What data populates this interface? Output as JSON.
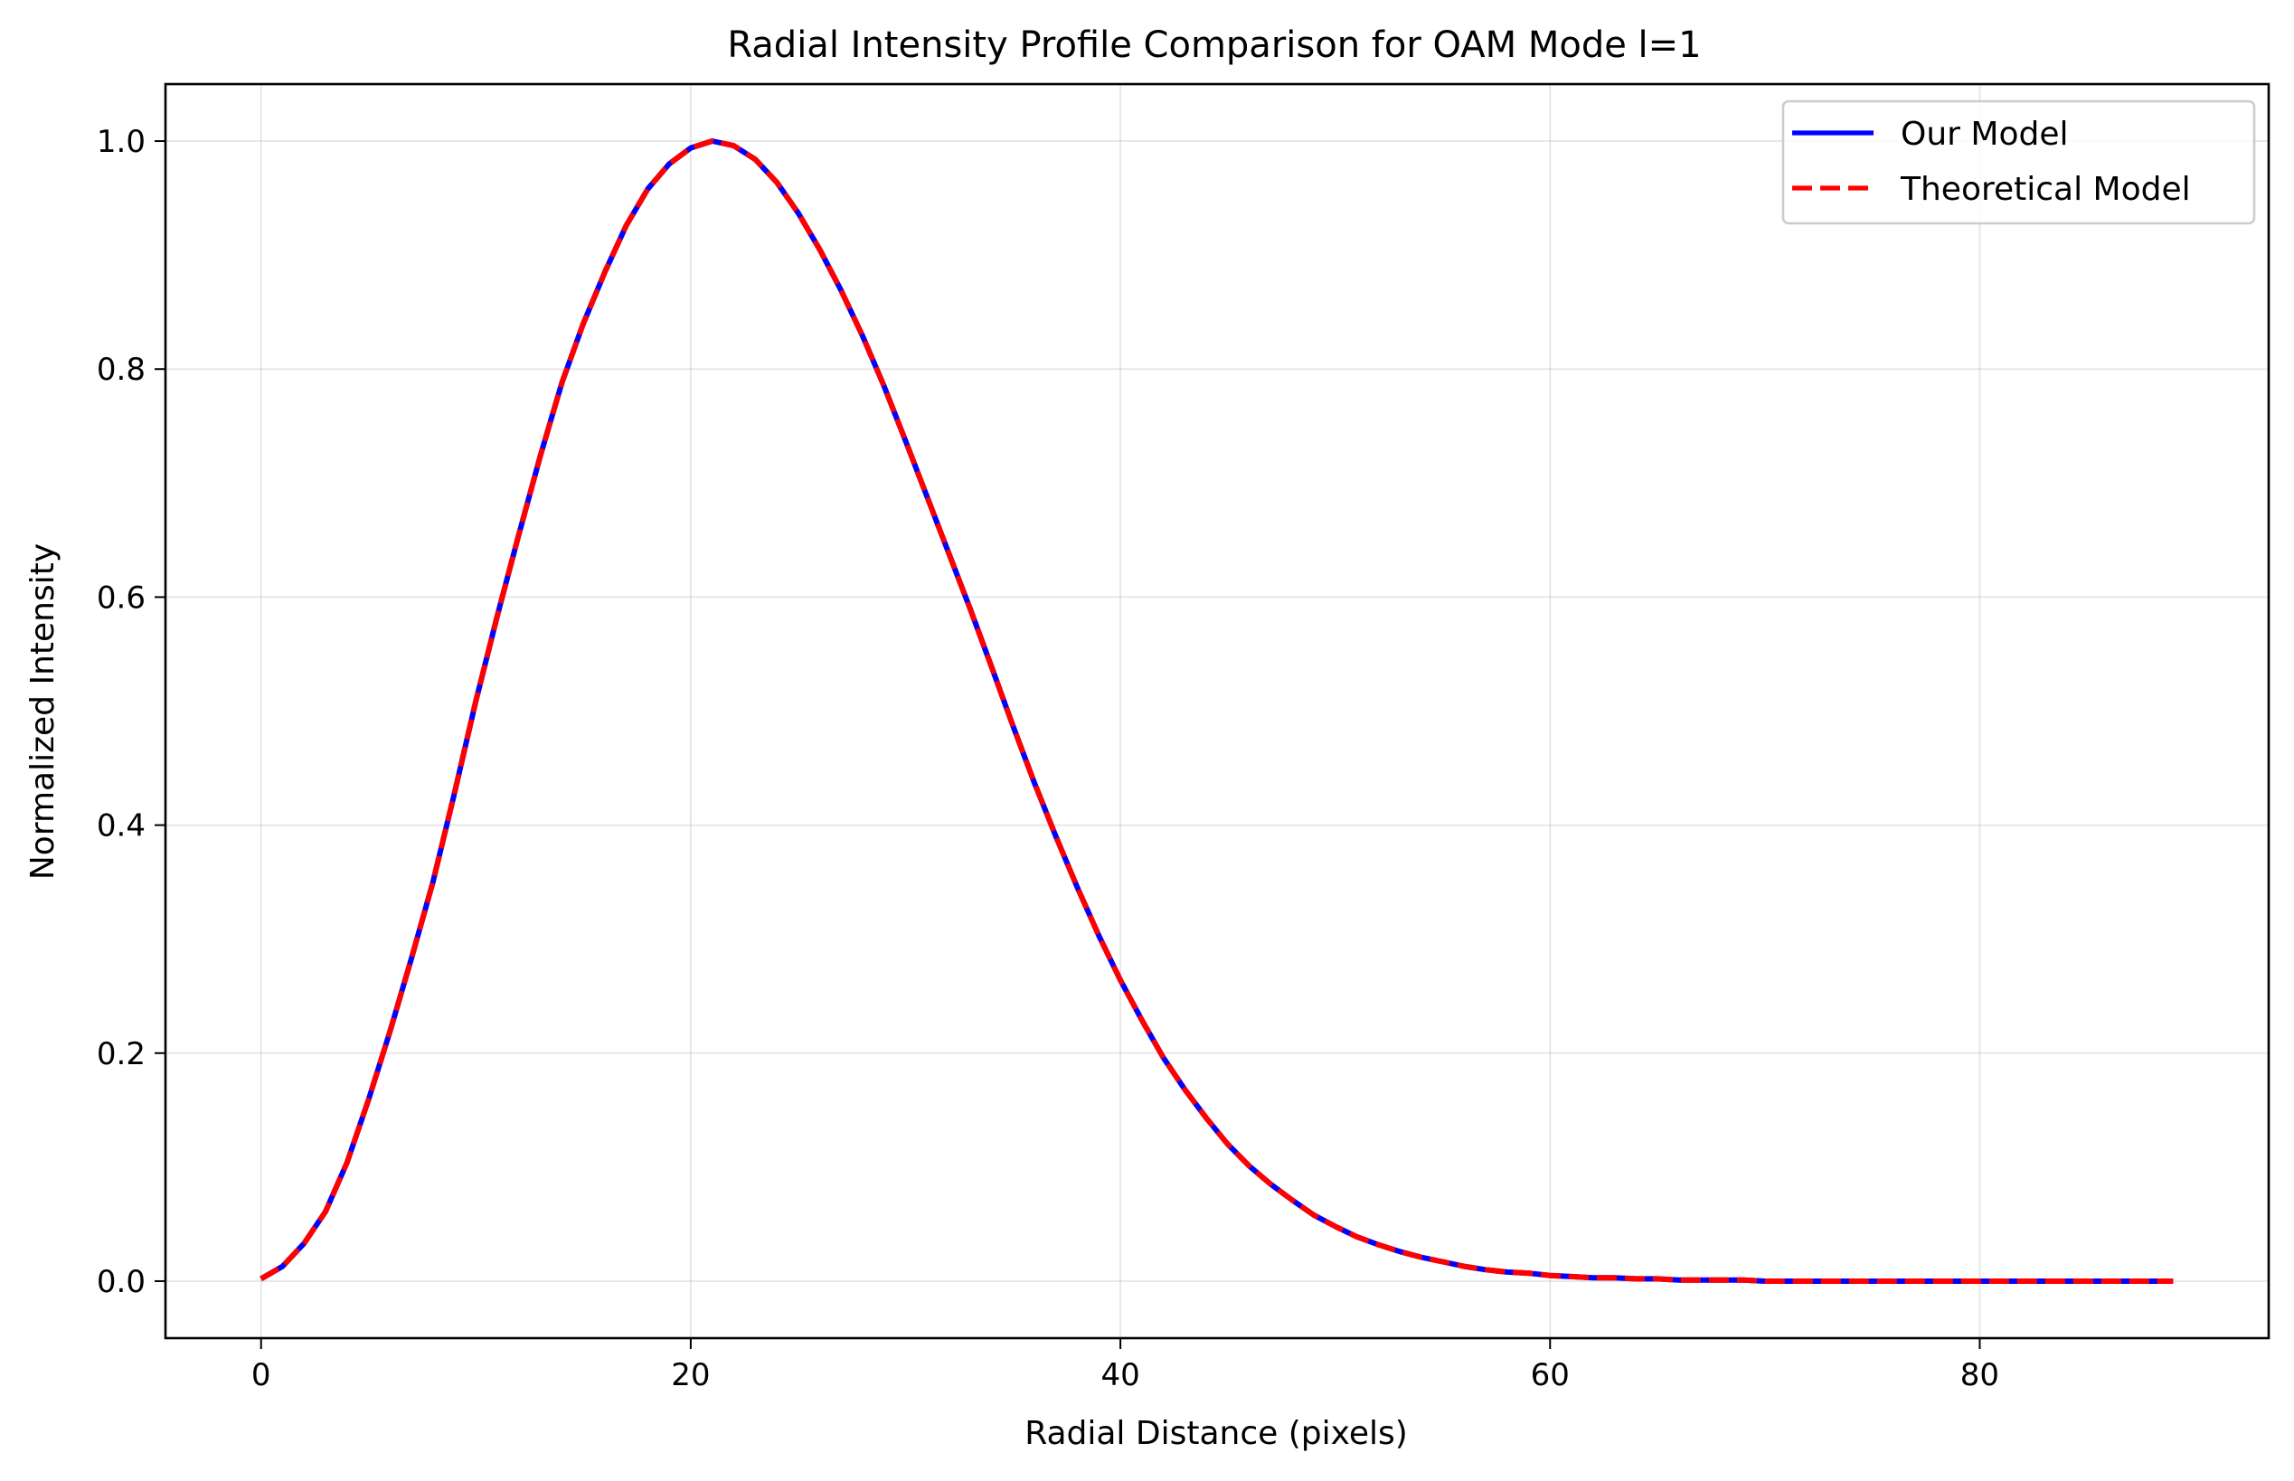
{
  "chart_data": {
    "type": "line",
    "title": "Radial Intensity Profile Comparison for OAM Mode l=1",
    "xlabel": "Radial Distance (pixels)",
    "ylabel": "Normalized Intensity",
    "xlim": [
      -4.45,
      93.45
    ],
    "ylim": [
      -0.05,
      1.05
    ],
    "xticks": [
      0,
      20,
      40,
      60,
      80
    ],
    "xtick_labels": [
      "0",
      "20",
      "40",
      "60",
      "80"
    ],
    "yticks": [
      0.0,
      0.2,
      0.4,
      0.6,
      0.8,
      1.0
    ],
    "ytick_labels": [
      "0.0",
      "0.2",
      "0.4",
      "0.6",
      "0.8",
      "1.0"
    ],
    "grid": true,
    "legend_position": "top-right",
    "x": [
      0,
      1,
      2,
      3,
      4,
      5,
      6,
      7,
      8,
      9,
      10,
      11,
      12,
      13,
      14,
      15,
      16,
      17,
      18,
      19,
      20,
      21,
      22,
      23,
      24,
      25,
      26,
      27,
      28,
      29,
      30,
      31,
      32,
      33,
      34,
      35,
      36,
      37,
      38,
      39,
      40,
      41,
      42,
      43,
      44,
      45,
      46,
      47,
      48,
      49,
      50,
      51,
      52,
      53,
      54,
      55,
      56,
      57,
      58,
      59,
      60,
      61,
      62,
      63,
      64,
      65,
      66,
      67,
      68,
      69,
      70,
      71,
      72,
      73,
      74,
      75,
      76,
      77,
      78,
      79,
      80,
      81,
      82,
      83,
      84,
      85,
      86,
      87,
      88,
      89
    ],
    "series": [
      {
        "name": "Our Model",
        "color": "#0000ff",
        "style": "solid",
        "values": [
          0.002,
          0.013,
          0.033,
          0.061,
          0.104,
          0.159,
          0.219,
          0.283,
          0.35,
          0.428,
          0.509,
          0.584,
          0.655,
          0.724,
          0.788,
          0.84,
          0.885,
          0.926,
          0.958,
          0.98,
          0.994,
          1.0,
          0.996,
          0.984,
          0.964,
          0.937,
          0.905,
          0.869,
          0.829,
          0.785,
          0.737,
          0.688,
          0.639,
          0.59,
          0.539,
          0.487,
          0.437,
          0.39,
          0.345,
          0.303,
          0.264,
          0.229,
          0.196,
          0.168,
          0.143,
          0.12,
          0.101,
          0.085,
          0.071,
          0.058,
          0.048,
          0.039,
          0.032,
          0.026,
          0.021,
          0.017,
          0.013,
          0.01,
          0.008,
          0.007,
          0.005,
          0.004,
          0.003,
          0.003,
          0.002,
          0.002,
          0.001,
          0.001,
          0.001,
          0.001,
          0.0,
          0.0,
          0.0,
          0.0,
          0.0,
          0.0,
          0.0,
          0.0,
          0.0,
          0.0,
          0.0,
          0.0,
          0.0,
          0.0,
          0.0,
          0.0,
          0.0,
          0.0,
          0.0,
          0.0
        ]
      },
      {
        "name": "Theoretical Model",
        "color": "#ff0000",
        "style": "dashed",
        "values": [
          0.002,
          0.013,
          0.033,
          0.061,
          0.104,
          0.159,
          0.219,
          0.283,
          0.35,
          0.428,
          0.509,
          0.584,
          0.655,
          0.724,
          0.788,
          0.84,
          0.885,
          0.926,
          0.958,
          0.98,
          0.994,
          1.0,
          0.996,
          0.984,
          0.964,
          0.937,
          0.905,
          0.869,
          0.829,
          0.785,
          0.737,
          0.688,
          0.639,
          0.59,
          0.539,
          0.487,
          0.437,
          0.39,
          0.345,
          0.303,
          0.264,
          0.229,
          0.196,
          0.168,
          0.143,
          0.12,
          0.101,
          0.085,
          0.071,
          0.058,
          0.048,
          0.039,
          0.032,
          0.026,
          0.021,
          0.017,
          0.013,
          0.01,
          0.008,
          0.007,
          0.005,
          0.004,
          0.003,
          0.003,
          0.002,
          0.002,
          0.001,
          0.001,
          0.001,
          0.001,
          0.0,
          0.0,
          0.0,
          0.0,
          0.0,
          0.0,
          0.0,
          0.0,
          0.0,
          0.0,
          0.0,
          0.0,
          0.0,
          0.0,
          0.0,
          0.0,
          0.0,
          0.0,
          0.0,
          0.0
        ]
      }
    ]
  }
}
